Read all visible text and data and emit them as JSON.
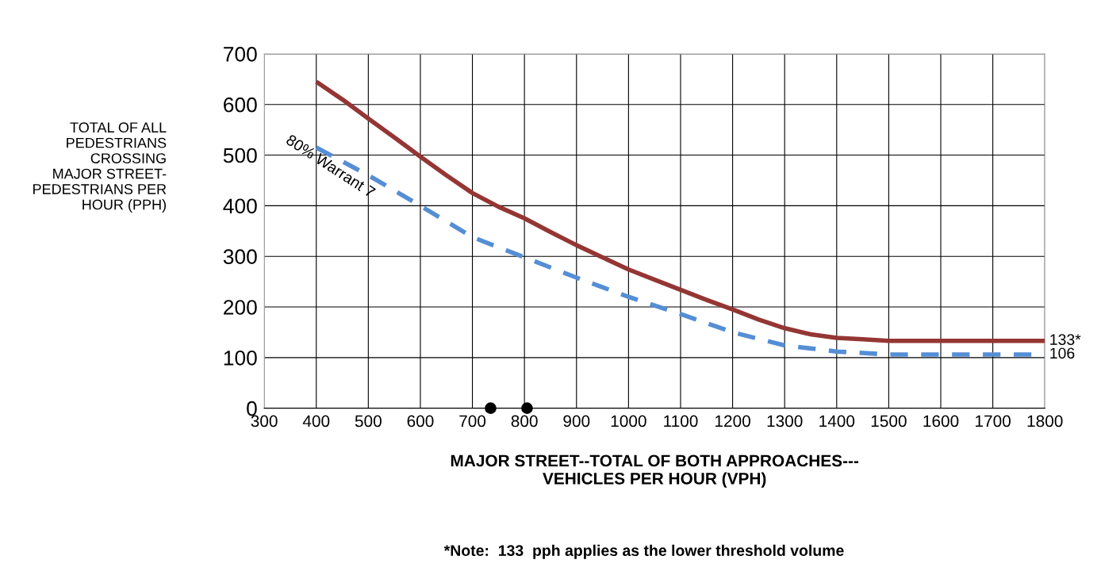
{
  "chart_data": {
    "type": "line",
    "xlabel": "MAJOR STREET--TOTAL OF BOTH APPROACHES---\nVEHICLES PER HOUR (VPH)",
    "ylabel": "TOTAL OF ALL\nPEDESTRIANS\nCROSSING\nMAJOR STREET-\nPEDESTRIANS PER\nHOUR (PPH)",
    "series": [
      {
        "color": "#943634",
        "line_style": "solid",
        "x": [
          400,
          450,
          500,
          550,
          600,
          650,
          700,
          750,
          800,
          850,
          900,
          950,
          1000,
          1050,
          1100,
          1150,
          1200,
          1250,
          1300,
          1350,
          1400,
          1450,
          1500,
          1800
        ],
        "values": [
          645,
          610,
          572,
          535,
          497,
          460,
          425,
          398,
          375,
          348,
          322,
          298,
          274,
          254,
          234,
          214,
          195,
          175,
          158,
          146,
          139,
          136,
          133,
          133
        ]
      },
      {
        "color": "#558ed5",
        "line_style": "dashed",
        "x": [
          400,
          500,
          600,
          700,
          800,
          900,
          1000,
          1100,
          1200,
          1300,
          1400,
          1500,
          1800
        ],
        "values": [
          515,
          460,
          400,
          338,
          298,
          258,
          220,
          186,
          150,
          124,
          112,
          106,
          106
        ]
      },
      {
        "type": "scatter",
        "marker": "circle",
        "color": "#000000",
        "x": [
          735,
          805
        ],
        "values": [
          0,
          0
        ]
      }
    ],
    "xlim": [
      300,
      1800
    ],
    "xticks": [
      300,
      400,
      500,
      600,
      700,
      800,
      900,
      1000,
      1100,
      1200,
      1300,
      1400,
      1500,
      1600,
      1700,
      1800
    ],
    "ylim": [
      0,
      700
    ],
    "yticks": [
      0,
      100,
      200,
      300,
      400,
      500,
      600,
      700
    ],
    "grid": true,
    "annotations": [
      "80% Warrant 7",
      {
        "text": "133*",
        "x": 1800,
        "y": 133
      },
      {
        "text": "106",
        "x": 1800,
        "y": 106
      },
      "*Note:  133  pph applies as the lower threshold volume"
    ]
  }
}
